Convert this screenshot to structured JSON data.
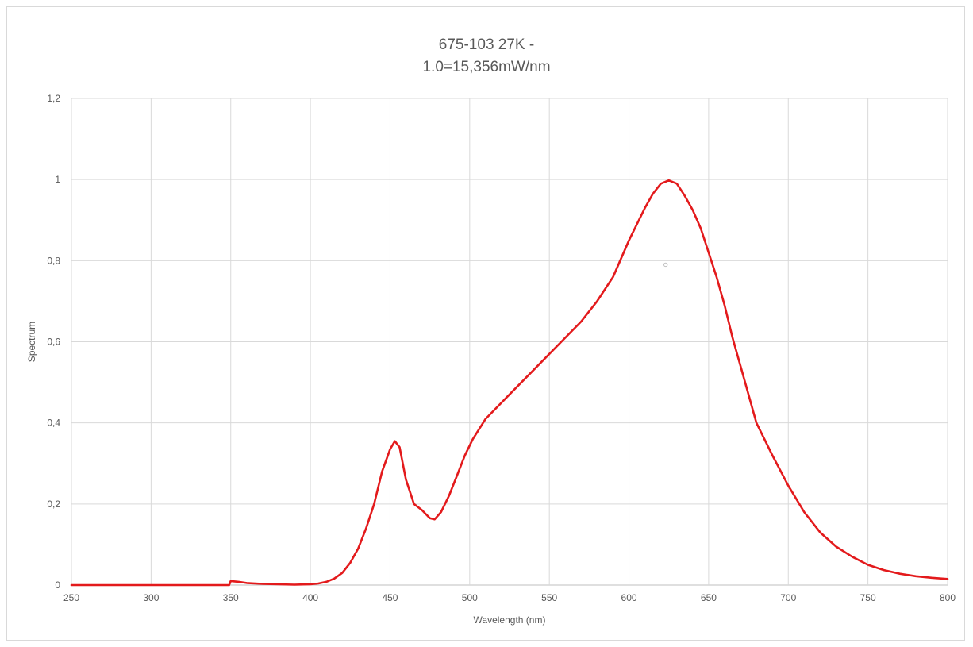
{
  "chart_data": {
    "type": "line",
    "title_lines": [
      "675-103 27K -",
      "1.0=15,356mW/nm"
    ],
    "xlabel": "Wavelength (nm)",
    "ylabel": "Spectrum",
    "xlim": [
      250,
      800
    ],
    "ylim": [
      0,
      1.2
    ],
    "x_ticks": [
      250,
      300,
      350,
      400,
      450,
      500,
      550,
      600,
      650,
      700,
      750,
      800
    ],
    "x_tick_labels": [
      "250",
      "300",
      "350",
      "400",
      "450",
      "500",
      "550",
      "600",
      "650",
      "700",
      "750",
      "800"
    ],
    "y_ticks": [
      0,
      0.2,
      0.4,
      0.6,
      0.8,
      1.0,
      1.2
    ],
    "y_tick_labels": [
      "0",
      "0,2",
      "0,4",
      "0,6",
      "0,8",
      "1",
      "1,2"
    ],
    "grid": true,
    "legend": "none",
    "series": [
      {
        "color": "#e31a1c",
        "x": [
          250,
          300,
          349,
          350,
          355,
          360,
          370,
          380,
          390,
          400,
          405,
          410,
          415,
          420,
          425,
          430,
          435,
          440,
          445,
          450,
          453,
          456,
          460,
          465,
          470,
          475,
          478,
          482,
          487,
          492,
          497,
          502,
          510,
          520,
          530,
          540,
          550,
          560,
          570,
          580,
          590,
          600,
          610,
          615,
          620,
          625,
          630,
          635,
          640,
          645,
          650,
          655,
          660,
          665,
          670,
          675,
          680,
          690,
          700,
          710,
          720,
          730,
          740,
          750,
          760,
          770,
          780,
          790,
          800
        ],
        "y": [
          0.0,
          0.0,
          0.0,
          0.01,
          0.008,
          0.005,
          0.003,
          0.002,
          0.001,
          0.002,
          0.004,
          0.008,
          0.016,
          0.03,
          0.055,
          0.09,
          0.14,
          0.2,
          0.28,
          0.335,
          0.355,
          0.34,
          0.26,
          0.2,
          0.185,
          0.165,
          0.162,
          0.18,
          0.22,
          0.27,
          0.32,
          0.36,
          0.41,
          0.45,
          0.49,
          0.53,
          0.57,
          0.61,
          0.65,
          0.7,
          0.76,
          0.85,
          0.93,
          0.965,
          0.99,
          0.998,
          0.99,
          0.96,
          0.925,
          0.88,
          0.82,
          0.76,
          0.69,
          0.61,
          0.54,
          0.47,
          0.4,
          0.32,
          0.245,
          0.18,
          0.13,
          0.095,
          0.07,
          0.05,
          0.037,
          0.028,
          0.022,
          0.018,
          0.015
        ]
      }
    ],
    "marker": {
      "color": "#bfbfbf",
      "x": 623,
      "y": 0.79
    }
  }
}
